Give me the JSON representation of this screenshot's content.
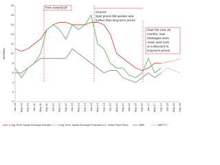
{
  "chart_data": {
    "type": "line",
    "y_label": "$/MMBtu",
    "categories": [
      "Jan-10",
      "May-10",
      "Sep-10",
      "Jan-11",
      "May-11",
      "Sep-11",
      "Jan-12",
      "May-12",
      "Sep-12",
      "Jan-13",
      "May-13",
      "Sep-13",
      "Jan-14",
      "May-14",
      "Sep-14",
      "Jan-15",
      "May-15",
      "Sep-15",
      "Jan-16",
      "May-16",
      "Sep-16",
      "Jan-17",
      "May-17",
      "Sep-17",
      "Jan-18",
      "May-18",
      "Sep-18"
    ],
    "series": [
      {
        "name": "Long-Term Japan Average Actuals",
        "color": "#e0453a",
        "dashed": false,
        "values": [
          11,
          10.5,
          11,
          12,
          13,
          15,
          16,
          16.5,
          16.5,
          16,
          16,
          16,
          16.5,
          16.5,
          16,
          14,
          10,
          9,
          8,
          7,
          6.5,
          7,
          8,
          8,
          null,
          null,
          null
        ]
      },
      {
        "name": "Long-Term Japan Average Forecast",
        "color": "#f08a3c",
        "dashed": true,
        "values": [
          null,
          null,
          null,
          null,
          null,
          null,
          null,
          null,
          null,
          null,
          null,
          null,
          null,
          null,
          null,
          null,
          null,
          null,
          null,
          null,
          null,
          null,
          null,
          8,
          8.3,
          8.5,
          9
        ]
      },
      {
        "name": "Asian Spot Price",
        "color": "#5cb85c",
        "dashed": false,
        "values": [
          7,
          5,
          7,
          8,
          10,
          15,
          16,
          15,
          13,
          16,
          15,
          16,
          18,
          12,
          11,
          8,
          7,
          7,
          5.5,
          5,
          6,
          9,
          6,
          7,
          null,
          null,
          null
        ]
      },
      {
        "name": "NBP",
        "color": "#8c8c8c",
        "dashed": false,
        "values": [
          6,
          6,
          7,
          8,
          9,
          9,
          9,
          9,
          9,
          11,
          10,
          9,
          8,
          7,
          6,
          6.5,
          6.5,
          5,
          4.5,
          4,
          5,
          6,
          5,
          6,
          null,
          null,
          null
        ]
      },
      {
        "name": "NBP FC",
        "color": "#b5b5b5",
        "dashed": true,
        "values": [
          null,
          null,
          null,
          null,
          null,
          null,
          null,
          null,
          null,
          null,
          null,
          null,
          null,
          null,
          null,
          null,
          null,
          null,
          null,
          null,
          null,
          null,
          null,
          6,
          7,
          6.5,
          6
        ]
      }
    ],
    "ylim": [
      0,
      20
    ],
    "yticks": [
      0,
      2,
      4,
      6,
      8,
      10,
      12,
      14,
      16,
      18,
      20
    ],
    "grid": false,
    "annotations": [
      [
        "from Asian/Gulf"
      ],
      [
        "oil price",
        "Spot prices fell quicker and",
        "further than long-term prices"
      ],
      [
        "Over the next 18",
        "months, Gas",
        "Strategies sees",
        "Asian spot LNG",
        "at a discount to",
        "long-term prices"
      ]
    ]
  }
}
